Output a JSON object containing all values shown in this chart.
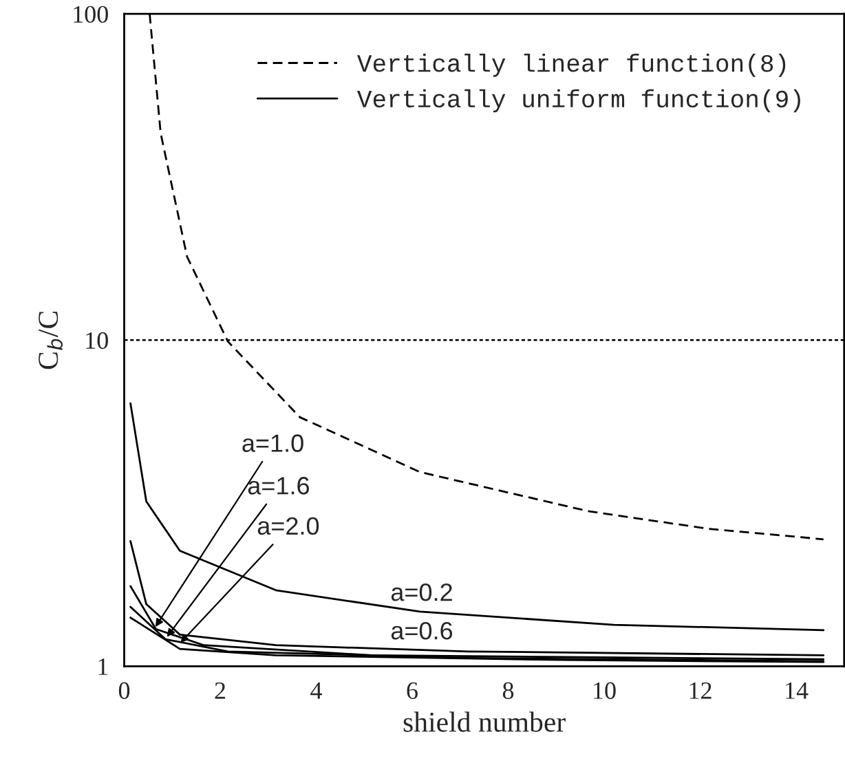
{
  "chart_data": {
    "type": "line",
    "xlabel": "shield number",
    "ylabel": "C$_{b}$/C",
    "xlim": [
      0,
      15
    ],
    "xticks": [
      0,
      2,
      4,
      6,
      8,
      10,
      12,
      14
    ],
    "ylim": [
      1,
      100
    ],
    "yticks": [
      1,
      10,
      100
    ],
    "log": "y",
    "grid": false,
    "legend": "top right",
    "marker": "none",
    "series": [
      {
        "name": "Vertically linear function(8)",
        "color": "#000000",
        "line_style": "dashed",
        "x": [
          0.53,
          0.76,
          1.31,
          2.16,
          3.66,
          6.16,
          9.66,
          12.16,
          14.57
        ],
        "values": [
          100,
          43,
          18,
          9.9,
          5.8,
          3.94,
          2.99,
          2.64,
          2.45
        ]
      },
      {
        "name": "Vertically uniform function(9)",
        "color": "#000000",
        "line_style": "solid",
        "x": [
          0.13,
          0.46,
          1.16,
          3.16,
          6.16,
          10.2,
          14.57
        ],
        "values": [
          6.4,
          3.2,
          2.26,
          1.71,
          1.47,
          1.34,
          1.29
        ]
      },
      {
        "color": "#000000",
        "line_style": "solid",
        "x": [
          0.13,
          0.46,
          1.16,
          3.16,
          7.17,
          14.57
        ],
        "values": [
          2.42,
          1.55,
          1.25,
          1.16,
          1.11,
          1.08
        ]
      },
      {
        "color": "#000000",
        "line_style": "solid",
        "x": [
          0.13,
          0.66,
          1.66,
          5.16,
          14.57
        ],
        "values": [
          1.76,
          1.3,
          1.16,
          1.08,
          1.05
        ]
      },
      {
        "color": "#000000",
        "line_style": "solid",
        "x": [
          0.13,
          0.86,
          2.16,
          7.17,
          14.57
        ],
        "values": [
          1.52,
          1.21,
          1.11,
          1.06,
          1.035
        ]
      },
      {
        "color": "#000000",
        "line_style": "solid",
        "x": [
          0.13,
          1.16,
          3.16,
          9.16,
          14.57
        ],
        "values": [
          1.41,
          1.13,
          1.08,
          1.045,
          1.03
        ]
      }
    ],
    "ref_lines": [
      {
        "axis": "y",
        "value": 10,
        "line_style": "dotted",
        "color": "#000000"
      }
    ],
    "annotations": [
      {
        "text": "a=1.0",
        "x": 0.65,
        "y": 1.32
      },
      {
        "text": "a=1.6",
        "x": 0.89,
        "y": 1.23
      },
      {
        "text": "a=2.0",
        "x": 1.17,
        "y": 1.18
      },
      {
        "text": "a=0.2",
        "x": 6.2,
        "y": 1.47
      },
      {
        "text": "a=0.6",
        "x": 6.2,
        "y": 1.12
      }
    ]
  }
}
